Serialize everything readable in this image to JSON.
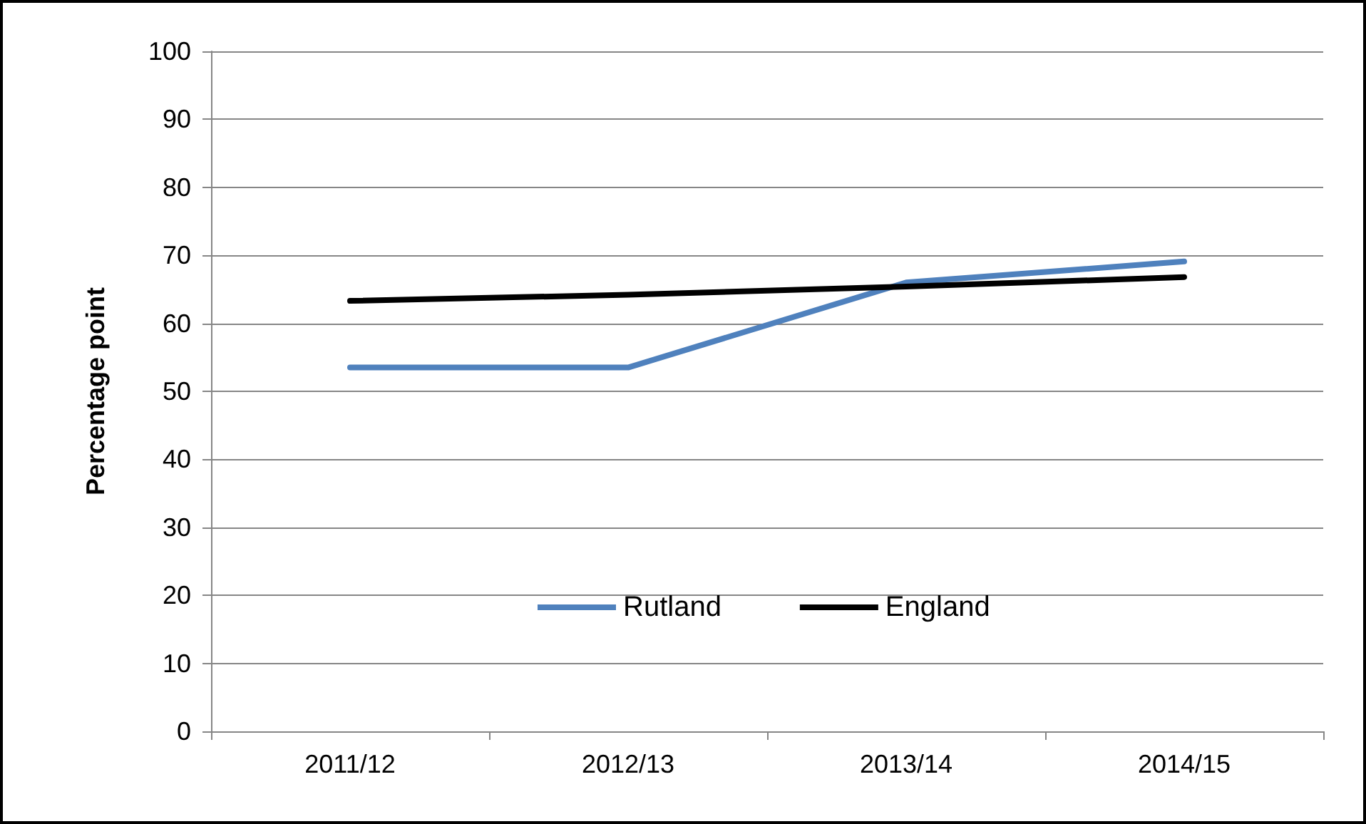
{
  "chart_data": {
    "type": "line",
    "ylabel": "Percentage point",
    "categories": [
      "2011/12",
      "2012/13",
      "2013/14",
      "2014/15"
    ],
    "series": [
      {
        "name": "Rutland",
        "color": "#4f81bd",
        "values": [
          53.5,
          53.5,
          66.0,
          69.1
        ]
      },
      {
        "name": "England",
        "color": "#000000",
        "values": [
          63.3,
          64.2,
          65.4,
          66.8
        ]
      }
    ],
    "ylim": [
      0,
      100
    ],
    "yticks": [
      0,
      10,
      20,
      30,
      40,
      50,
      60,
      70,
      80,
      90,
      100
    ],
    "grid": "y",
    "legend": "bottom",
    "marker": "none",
    "line_style": "solid"
  }
}
